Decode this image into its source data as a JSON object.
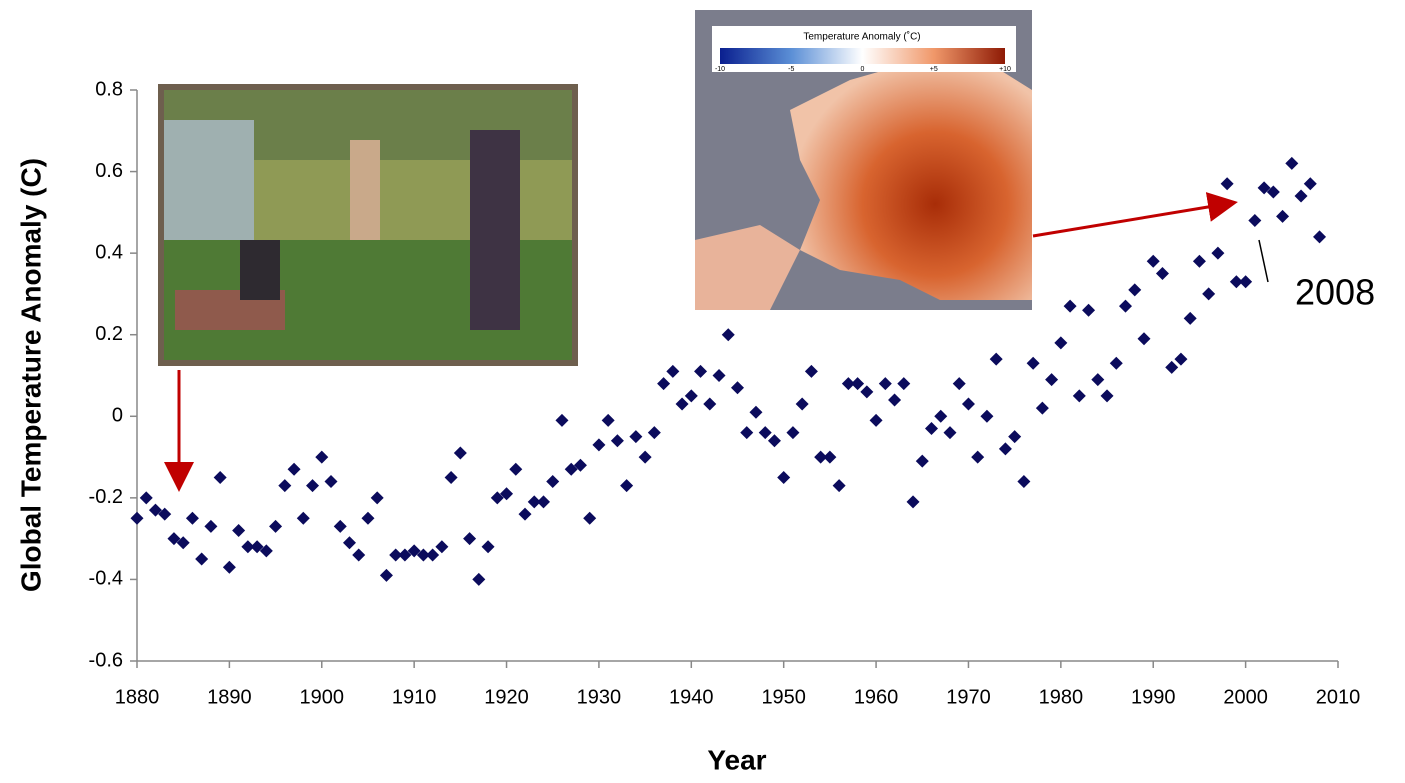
{
  "chart_data": {
    "type": "scatter",
    "x_label": "Year",
    "y_label": "Global Temperature Anomaly (C)",
    "x": [
      1880,
      1881,
      1882,
      1883,
      1884,
      1885,
      1886,
      1887,
      1888,
      1889,
      1890,
      1891,
      1892,
      1893,
      1894,
      1895,
      1896,
      1897,
      1898,
      1899,
      1900,
      1901,
      1902,
      1903,
      1904,
      1905,
      1906,
      1907,
      1908,
      1909,
      1910,
      1911,
      1912,
      1913,
      1914,
      1915,
      1916,
      1917,
      1918,
      1919,
      1920,
      1921,
      1922,
      1923,
      1924,
      1925,
      1926,
      1927,
      1928,
      1929,
      1930,
      1931,
      1932,
      1933,
      1934,
      1935,
      1936,
      1937,
      1938,
      1939,
      1940,
      1941,
      1942,
      1943,
      1944,
      1945,
      1946,
      1947,
      1948,
      1949,
      1950,
      1951,
      1952,
      1953,
      1954,
      1955,
      1956,
      1957,
      1958,
      1959,
      1960,
      1961,
      1962,
      1963,
      1964,
      1965,
      1966,
      1967,
      1968,
      1969,
      1970,
      1971,
      1972,
      1973,
      1974,
      1975,
      1976,
      1977,
      1978,
      1979,
      1980,
      1981,
      1982,
      1983,
      1984,
      1985,
      1986,
      1987,
      1988,
      1989,
      1990,
      1991,
      1992,
      1993,
      1994,
      1995,
      1996,
      1997,
      1998,
      1999,
      2000,
      2001,
      2002,
      2003,
      2004,
      2005,
      2006,
      2007,
      2008
    ],
    "values": [
      -0.25,
      -0.2,
      -0.23,
      -0.24,
      -0.3,
      -0.31,
      -0.25,
      -0.35,
      -0.27,
      -0.15,
      -0.37,
      -0.28,
      -0.32,
      -0.32,
      -0.33,
      -0.27,
      -0.17,
      -0.13,
      -0.25,
      -0.17,
      -0.1,
      -0.16,
      -0.27,
      -0.31,
      -0.34,
      -0.25,
      -0.2,
      -0.39,
      -0.34,
      -0.34,
      -0.33,
      -0.34,
      -0.34,
      -0.32,
      -0.15,
      -0.09,
      -0.3,
      -0.4,
      -0.32,
      -0.2,
      -0.19,
      -0.13,
      -0.24,
      -0.21,
      -0.21,
      -0.16,
      -0.01,
      -0.13,
      -0.12,
      -0.25,
      -0.07,
      -0.01,
      -0.06,
      -0.17,
      -0.05,
      -0.1,
      -0.04,
      0.08,
      0.11,
      0.03,
      0.05,
      0.11,
      0.03,
      0.1,
      0.2,
      0.07,
      -0.04,
      0.01,
      -0.04,
      -0.06,
      -0.15,
      -0.04,
      0.03,
      0.11,
      -0.1,
      -0.1,
      -0.17,
      0.08,
      0.08,
      0.06,
      -0.01,
      0.08,
      0.04,
      0.08,
      -0.21,
      -0.11,
      -0.03,
      0.0,
      -0.04,
      0.08,
      0.03,
      -0.1,
      0.0,
      0.14,
      -0.08,
      -0.05,
      -0.16,
      0.13,
      0.02,
      0.09,
      0.18,
      0.27,
      0.05,
      0.26,
      0.09,
      0.05,
      0.13,
      0.27,
      0.31,
      0.19,
      0.38,
      0.35,
      0.12,
      0.14,
      0.24,
      0.38,
      0.3,
      0.4,
      0.57,
      0.33,
      0.33,
      0.48,
      0.56,
      0.55,
      0.49,
      0.62,
      0.54,
      0.57,
      0.44
    ],
    "color": "#0b0b5c",
    "xlim": [
      1880,
      2010
    ],
    "xticks": [
      1880,
      1890,
      1900,
      1910,
      1920,
      1930,
      1940,
      1950,
      1960,
      1970,
      1980,
      1990,
      2000,
      2010
    ],
    "ylim": [
      -0.6,
      0.8
    ],
    "yticks": [
      -0.6,
      -0.4,
      -0.2,
      0,
      0.2,
      0.4,
      0.6,
      0.8
    ],
    "annotation": "2008",
    "inset_map_title": "Temperature Anomaly (˚C)",
    "inset_map_ticks": [
      "-10",
      "-5",
      "0",
      "+5",
      "+10"
    ]
  }
}
